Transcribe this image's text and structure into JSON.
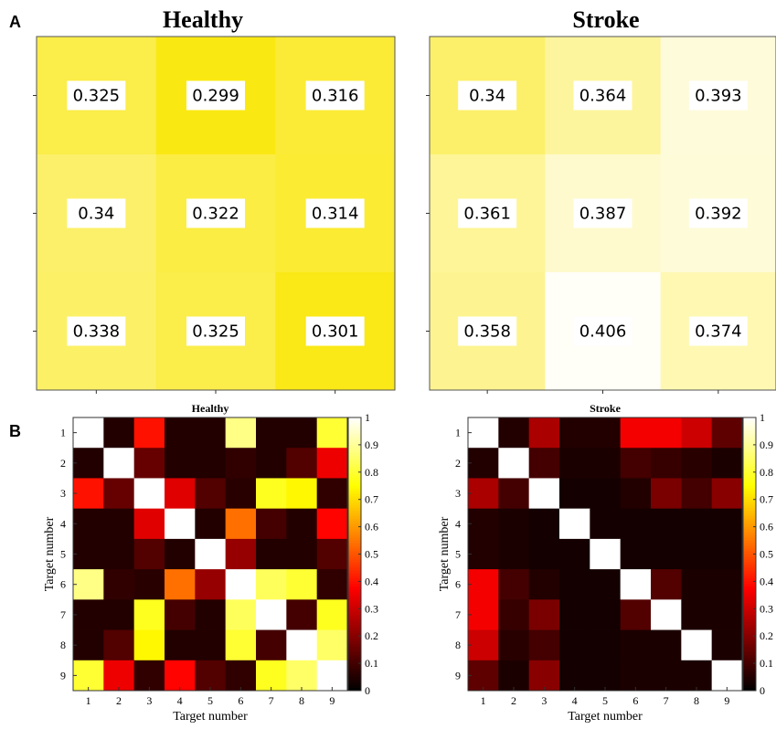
{
  "panel_labels": [
    "A",
    "B"
  ],
  "chart_data": [
    {
      "type": "heatmap",
      "panel": "A",
      "title": "Healthy",
      "rows": 3,
      "cols": 3,
      "values": [
        [
          0.325,
          0.299,
          0.316
        ],
        [
          0.34,
          0.322,
          0.314
        ],
        [
          0.338,
          0.325,
          0.301
        ]
      ],
      "labels": [
        [
          "0.325",
          "0.299",
          "0.316"
        ],
        [
          "0.34",
          "0.322",
          "0.314"
        ],
        [
          "0.338",
          "0.325",
          "0.301"
        ]
      ],
      "color_range": [
        0.29,
        0.41
      ],
      "colormap": "yellow-to-white"
    },
    {
      "type": "heatmap",
      "panel": "A",
      "title": "Stroke",
      "rows": 3,
      "cols": 3,
      "values": [
        [
          0.34,
          0.364,
          0.393
        ],
        [
          0.361,
          0.387,
          0.392
        ],
        [
          0.358,
          0.406,
          0.374
        ]
      ],
      "labels": [
        [
          "0.34",
          "0.364",
          "0.393"
        ],
        [
          "0.361",
          "0.387",
          "0.392"
        ],
        [
          "0.358",
          "0.406",
          "0.374"
        ]
      ],
      "color_range": [
        0.29,
        0.41
      ],
      "colormap": "yellow-to-white"
    },
    {
      "type": "heatmap",
      "panel": "B",
      "title": "Healthy",
      "xlabel": "Target number",
      "ylabel": "Target number",
      "ticks": [
        "1",
        "2",
        "3",
        "4",
        "5",
        "6",
        "7",
        "8",
        "9"
      ],
      "colorbar_ticks": [
        "0",
        "0.1",
        "0.2",
        "0.3",
        "0.4",
        "0.5",
        "0.6",
        "0.7",
        "0.8",
        "0.9",
        "1"
      ],
      "clim": [
        0,
        1
      ],
      "colormap": "hot",
      "values": [
        [
          1.0,
          0.05,
          0.4,
          0.05,
          0.05,
          0.88,
          0.05,
          0.05,
          0.8
        ],
        [
          0.05,
          1.0,
          0.15,
          0.05,
          0.05,
          0.07,
          0.05,
          0.12,
          0.35
        ],
        [
          0.4,
          0.15,
          1.0,
          0.33,
          0.12,
          0.06,
          0.78,
          0.74,
          0.07
        ],
        [
          0.05,
          0.05,
          0.33,
          1.0,
          0.05,
          0.54,
          0.1,
          0.05,
          0.38
        ],
        [
          0.05,
          0.05,
          0.12,
          0.05,
          1.0,
          0.22,
          0.05,
          0.05,
          0.12
        ],
        [
          0.88,
          0.07,
          0.06,
          0.54,
          0.22,
          1.0,
          0.84,
          0.8,
          0.07
        ],
        [
          0.05,
          0.05,
          0.78,
          0.1,
          0.05,
          0.84,
          1.0,
          0.1,
          0.78
        ],
        [
          0.05,
          0.12,
          0.74,
          0.05,
          0.05,
          0.8,
          0.1,
          1.0,
          0.85
        ],
        [
          0.8,
          0.35,
          0.07,
          0.38,
          0.12,
          0.07,
          0.78,
          0.85,
          1.0
        ]
      ]
    },
    {
      "type": "heatmap",
      "panel": "B",
      "title": "Stroke",
      "xlabel": "Target number",
      "ylabel": "Target number",
      "ticks": [
        "1",
        "2",
        "3",
        "4",
        "5",
        "6",
        "7",
        "8",
        "9"
      ],
      "colorbar_ticks": [
        "0",
        "0.1",
        "0.2",
        "0.3",
        "0.4",
        "0.5",
        "0.6",
        "0.7",
        "0.8",
        "0.9",
        "1"
      ],
      "clim": [
        0,
        1
      ],
      "colormap": "hot",
      "values": [
        [
          1.0,
          0.05,
          0.25,
          0.05,
          0.05,
          0.36,
          0.36,
          0.3,
          0.14
        ],
        [
          0.05,
          1.0,
          0.1,
          0.04,
          0.04,
          0.1,
          0.08,
          0.06,
          0.04
        ],
        [
          0.25,
          0.1,
          1.0,
          0.03,
          0.03,
          0.05,
          0.18,
          0.1,
          0.2
        ],
        [
          0.05,
          0.04,
          0.03,
          1.0,
          0.03,
          0.03,
          0.03,
          0.03,
          0.03
        ],
        [
          0.05,
          0.04,
          0.03,
          0.03,
          1.0,
          0.03,
          0.03,
          0.03,
          0.03
        ],
        [
          0.36,
          0.1,
          0.05,
          0.03,
          0.03,
          1.0,
          0.12,
          0.04,
          0.04
        ],
        [
          0.36,
          0.08,
          0.18,
          0.03,
          0.03,
          0.12,
          1.0,
          0.04,
          0.04
        ],
        [
          0.3,
          0.06,
          0.1,
          0.03,
          0.03,
          0.04,
          0.04,
          1.0,
          0.04
        ],
        [
          0.14,
          0.04,
          0.2,
          0.03,
          0.03,
          0.04,
          0.04,
          0.04,
          1.0
        ]
      ]
    }
  ]
}
